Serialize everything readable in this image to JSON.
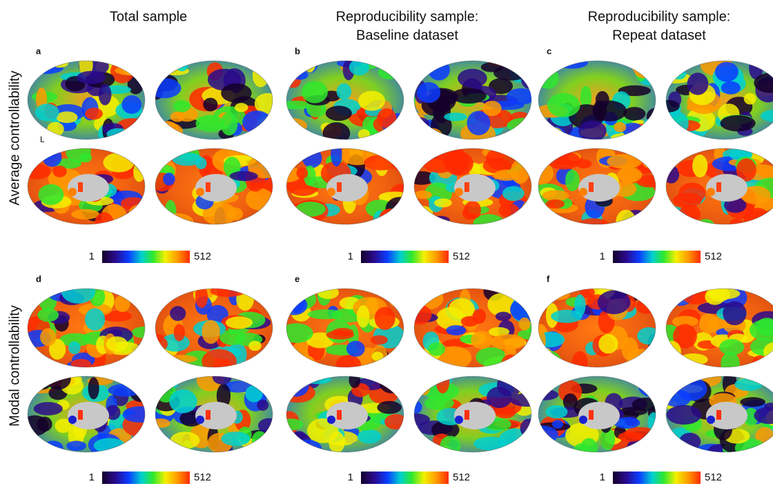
{
  "columns": [
    {
      "lines": [
        "Total sample"
      ]
    },
    {
      "lines": [
        "Reproducibility sample:",
        "Baseline dataset"
      ]
    },
    {
      "lines": [
        "Reproducibility sample:",
        "Repeat dataset"
      ]
    }
  ],
  "rows": [
    "Average controllability",
    "Modal controllability"
  ],
  "hemisphere_label": "L",
  "panels": [
    {
      "label": "a",
      "colorbar": {
        "min": 1,
        "max": 512
      }
    },
    {
      "label": "b",
      "colorbar": {
        "min": 1,
        "max": 512
      }
    },
    {
      "label": "c",
      "colorbar": {
        "min": 1,
        "max": 512
      }
    },
    {
      "label": "d",
      "colorbar": {
        "min": 1,
        "max": 512
      }
    },
    {
      "label": "e",
      "colorbar": {
        "min": 1,
        "max": 512
      }
    },
    {
      "label": "f",
      "colorbar": {
        "min": 1,
        "max": 512
      }
    }
  ]
}
